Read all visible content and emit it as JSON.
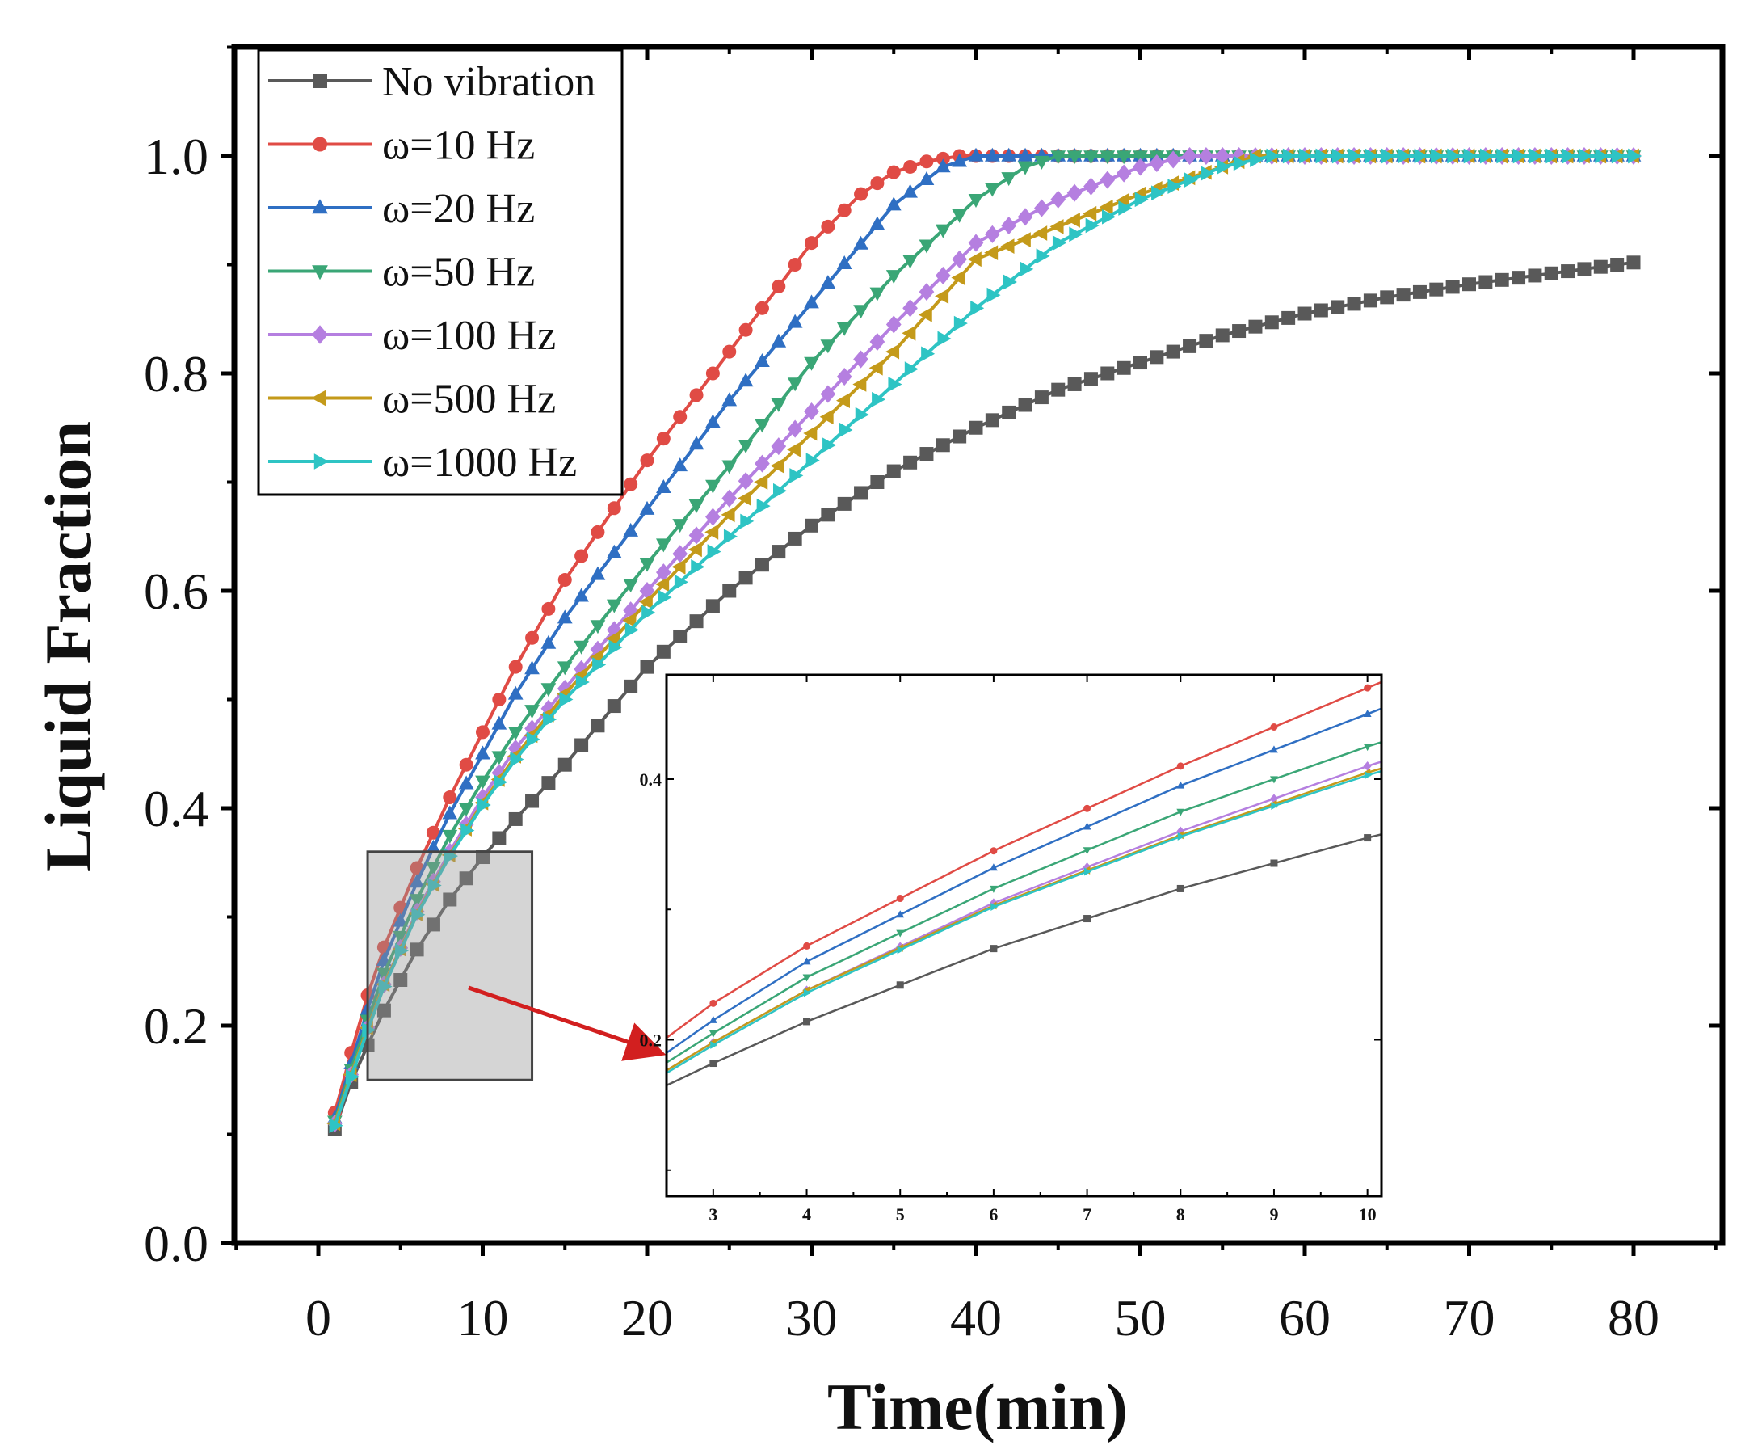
{
  "chart_data": {
    "type": "line",
    "title": "",
    "xlabel": "Time(min)",
    "ylabel": "Liquid Fraction",
    "xlim": [
      -5,
      85
    ],
    "ylim": [
      0.0,
      1.1
    ],
    "xticks": [
      0,
      10,
      20,
      30,
      40,
      50,
      60,
      70,
      80
    ],
    "yticks": [
      0.0,
      0.2,
      0.4,
      0.6,
      0.8,
      1.0
    ],
    "xtick_labels": [
      "0",
      "10",
      "20",
      "30",
      "40",
      "50",
      "60",
      "70",
      "80"
    ],
    "ytick_labels": [
      "0.0",
      "0.2",
      "0.4",
      "0.6",
      "0.8",
      "1.0"
    ],
    "legend_position": "top-left",
    "grid": false,
    "series": [
      {
        "name": "No vibration",
        "color": "#595959",
        "marker": "square",
        "x": [
          1,
          2,
          3,
          4,
          6,
          8,
          10,
          12,
          15,
          20,
          25,
          30,
          35,
          40,
          45,
          50,
          55,
          60,
          65,
          70,
          75,
          80
        ],
        "values": [
          0.105,
          0.148,
          0.182,
          0.214,
          0.27,
          0.316,
          0.355,
          0.39,
          0.44,
          0.53,
          0.6,
          0.66,
          0.71,
          0.75,
          0.785,
          0.81,
          0.835,
          0.855,
          0.87,
          0.882,
          0.892,
          0.902
        ]
      },
      {
        "name": "ω=10 Hz",
        "color": "#e04b45",
        "marker": "circle",
        "x": [
          1,
          2,
          3,
          4,
          6,
          8,
          10,
          12,
          15,
          20,
          25,
          30,
          33,
          35,
          37,
          39,
          40,
          45,
          50,
          55,
          60,
          65,
          70,
          75,
          80
        ],
        "values": [
          0.12,
          0.175,
          0.228,
          0.272,
          0.345,
          0.41,
          0.47,
          0.53,
          0.61,
          0.72,
          0.82,
          0.92,
          0.965,
          0.985,
          0.995,
          1.0,
          1.0,
          1.0,
          1.0,
          1.0,
          1.0,
          1.0,
          1.0,
          1.0,
          1.0
        ]
      },
      {
        "name": "ω=20 Hz",
        "color": "#2f6fc3",
        "marker": "triangle-up",
        "x": [
          1,
          2,
          3,
          4,
          6,
          8,
          10,
          12,
          15,
          20,
          25,
          30,
          35,
          38,
          40,
          42,
          45,
          50,
          55,
          60,
          65,
          70,
          75,
          80
        ],
        "values": [
          0.115,
          0.165,
          0.215,
          0.26,
          0.332,
          0.395,
          0.45,
          0.505,
          0.575,
          0.675,
          0.775,
          0.865,
          0.955,
          0.99,
          1.0,
          1.0,
          1.0,
          1.0,
          1.0,
          1.0,
          1.0,
          1.0,
          1.0,
          1.0
        ]
      },
      {
        "name": "ω=50 Hz",
        "color": "#3aa676",
        "marker": "triangle-down",
        "x": [
          1,
          2,
          3,
          4,
          6,
          8,
          10,
          12,
          15,
          20,
          25,
          30,
          35,
          40,
          43,
          45,
          47,
          50,
          55,
          60,
          65,
          70,
          75,
          80
        ],
        "values": [
          0.112,
          0.16,
          0.205,
          0.248,
          0.316,
          0.375,
          0.425,
          0.47,
          0.53,
          0.625,
          0.715,
          0.81,
          0.89,
          0.96,
          0.99,
          1.0,
          1.0,
          1.0,
          1.0,
          1.0,
          1.0,
          1.0,
          1.0,
          1.0
        ]
      },
      {
        "name": "ω=100 Hz",
        "color": "#b57fe0",
        "marker": "diamond",
        "x": [
          1,
          2,
          3,
          4,
          6,
          8,
          10,
          12,
          15,
          20,
          25,
          30,
          35,
          40,
          45,
          50,
          53,
          55,
          60,
          65,
          70,
          75,
          80
        ],
        "values": [
          0.11,
          0.155,
          0.198,
          0.238,
          0.305,
          0.36,
          0.41,
          0.455,
          0.51,
          0.6,
          0.685,
          0.765,
          0.845,
          0.92,
          0.96,
          0.99,
          1.0,
          1.0,
          1.0,
          1.0,
          1.0,
          1.0,
          1.0
        ]
      },
      {
        "name": "ω=500 Hz",
        "color": "#c49a1a",
        "marker": "triangle-left",
        "x": [
          1,
          2,
          3,
          4,
          6,
          8,
          10,
          12,
          15,
          20,
          25,
          30,
          35,
          40,
          45,
          50,
          55,
          57,
          60,
          65,
          70,
          75,
          80
        ],
        "values": [
          0.11,
          0.155,
          0.198,
          0.238,
          0.303,
          0.357,
          0.405,
          0.448,
          0.505,
          0.59,
          0.67,
          0.745,
          0.82,
          0.905,
          0.935,
          0.965,
          0.99,
          1.0,
          1.0,
          1.0,
          1.0,
          1.0,
          1.0
        ]
      },
      {
        "name": "ω=1000 Hz",
        "color": "#2ec4c4",
        "marker": "triangle-right",
        "x": [
          1,
          2,
          3,
          4,
          6,
          8,
          10,
          12,
          15,
          20,
          25,
          30,
          35,
          40,
          45,
          50,
          55,
          58,
          60,
          65,
          70,
          75,
          80
        ],
        "values": [
          0.108,
          0.153,
          0.196,
          0.236,
          0.302,
          0.356,
          0.403,
          0.445,
          0.5,
          0.58,
          0.65,
          0.72,
          0.79,
          0.86,
          0.92,
          0.96,
          0.99,
          1.0,
          1.0,
          1.0,
          1.0,
          1.0,
          1.0
        ]
      }
    ],
    "annotations": {
      "zoom_region": {
        "x": [
          3,
          13
        ],
        "y": [
          0.15,
          0.36
        ]
      },
      "inset": {
        "xlim": [
          2.5,
          10.15
        ],
        "ylim": [
          0.08,
          0.48
        ],
        "xticks": [
          3,
          4,
          5,
          6,
          7,
          8,
          9,
          10
        ],
        "xtick_labels": [
          "3",
          "4",
          "5",
          "6",
          "7",
          "8",
          "9",
          "10"
        ],
        "yticks": [
          0.2,
          0.4
        ],
        "ytick_labels": [
          "0.2",
          "0.4"
        ]
      }
    }
  }
}
